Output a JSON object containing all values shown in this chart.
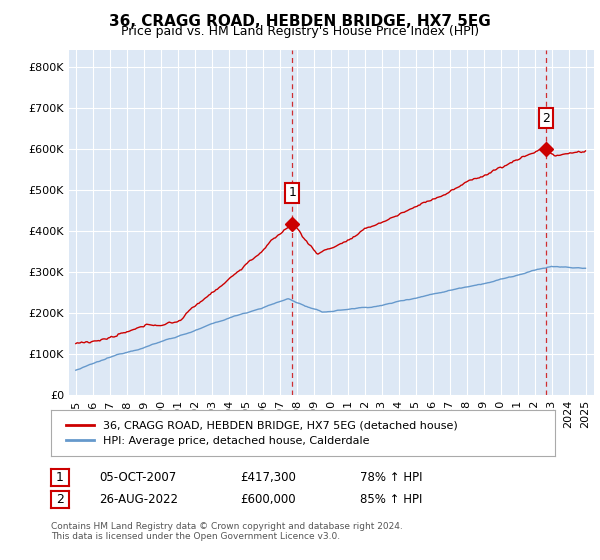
{
  "title": "36, CRAGG ROAD, HEBDEN BRIDGE, HX7 5EG",
  "subtitle": "Price paid vs. HM Land Registry's House Price Index (HPI)",
  "legend_label_red": "36, CRAGG ROAD, HEBDEN BRIDGE, HX7 5EG (detached house)",
  "legend_label_blue": "HPI: Average price, detached house, Calderdale",
  "annotation1_label": "1",
  "annotation1_date": "05-OCT-2007",
  "annotation1_price": "£417,300",
  "annotation1_hpi": "78% ↑ HPI",
  "annotation1_year": 2007.75,
  "annotation1_value": 417300,
  "annotation2_label": "2",
  "annotation2_date": "26-AUG-2022",
  "annotation2_price": "£600,000",
  "annotation2_hpi": "85% ↑ HPI",
  "annotation2_year": 2022.65,
  "annotation2_value": 600000,
  "footer": "Contains HM Land Registry data © Crown copyright and database right 2024.\nThis data is licensed under the Open Government Licence v3.0.",
  "ylim": [
    0,
    840000
  ],
  "yticks": [
    0,
    100000,
    200000,
    300000,
    400000,
    500000,
    600000,
    700000,
    800000
  ],
  "red_color": "#cc0000",
  "blue_color": "#6699cc",
  "chart_bg_color": "#dde8f5",
  "vline_color": "#cc0000",
  "grid_color": "#ffffff",
  "background_color": "#ffffff",
  "sale1_year": 2007.75,
  "sale1_value": 417300,
  "sale2_year": 2022.65,
  "sale2_value": 600000
}
